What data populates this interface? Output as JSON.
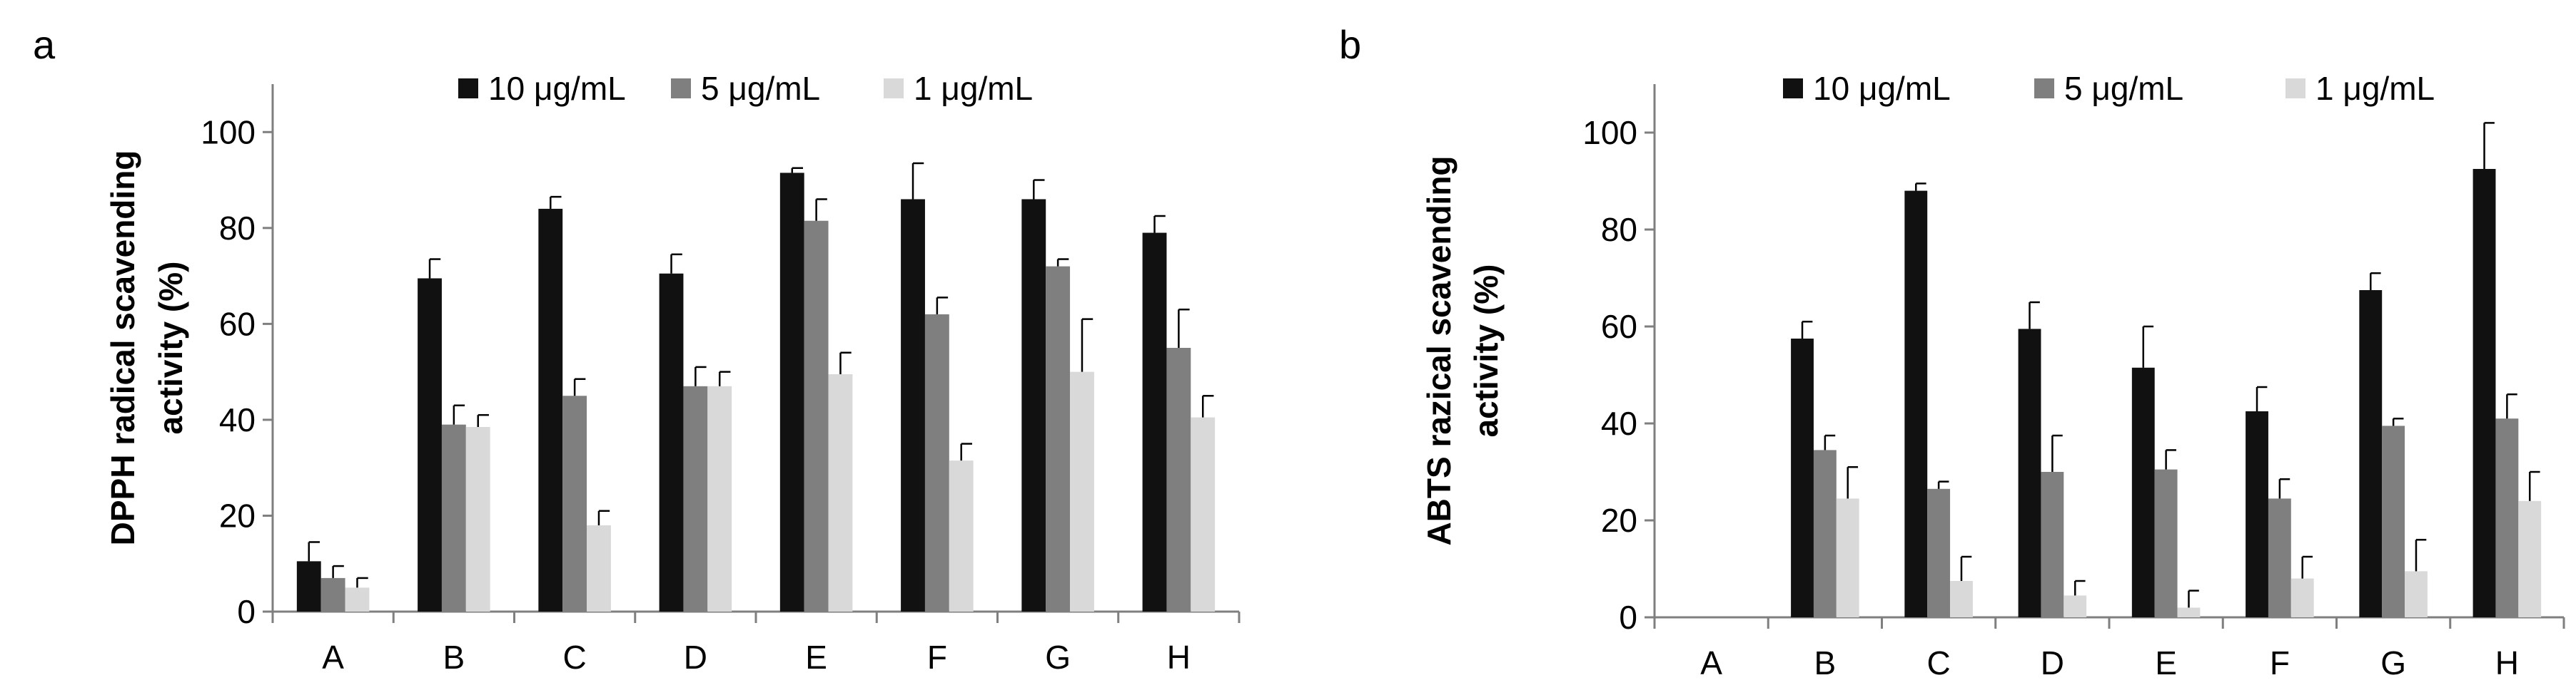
{
  "chart_data": [
    {
      "panel_label": "a",
      "type": "bar",
      "title": "",
      "xlabel": "",
      "ylabel_lines": [
        "DPPH radical scavending",
        "activity (%)"
      ],
      "ylim": [
        0,
        110
      ],
      "yticks": [
        0,
        20,
        40,
        60,
        80,
        100
      ],
      "categories": [
        "A",
        "B",
        "C",
        "D",
        "E",
        "F",
        "G",
        "H"
      ],
      "legend_position": "top",
      "series": [
        {
          "name": "10 μg/mL",
          "color": "#111111",
          "values": [
            10.5,
            69.5,
            84,
            70.5,
            91.5,
            86,
            86,
            79
          ],
          "errors": [
            4,
            4,
            2.5,
            4,
            1,
            7.5,
            4,
            3.5
          ]
        },
        {
          "name": "5 μg/mL",
          "color": "#7f7f7f",
          "values": [
            7,
            39,
            45,
            47,
            81.5,
            62,
            72,
            55
          ],
          "errors": [
            2.5,
            4,
            3.5,
            4,
            4.5,
            3.5,
            1.5,
            8
          ]
        },
        {
          "name": "1 μg/mL",
          "color": "#d9d9d9",
          "values": [
            5,
            38.5,
            18,
            47,
            49.5,
            31.5,
            50,
            40.5
          ],
          "errors": [
            2,
            2.5,
            3,
            3,
            4.5,
            3.5,
            11,
            4.5
          ]
        }
      ]
    },
    {
      "panel_label": "b",
      "type": "bar",
      "title": "",
      "xlabel": "",
      "ylabel_lines": [
        "ABTS razical scavending",
        "activity (%)"
      ],
      "ylim": [
        0,
        110
      ],
      "yticks": [
        0,
        20,
        40,
        60,
        80,
        100
      ],
      "categories": [
        "A",
        "B",
        "C",
        "D",
        "E",
        "F",
        "G",
        "H"
      ],
      "legend_position": "top",
      "series": [
        {
          "name": "10 μg/mL",
          "color": "#111111",
          "values": [
            0,
            57.5,
            88,
            59.5,
            51.5,
            42.5,
            67.5,
            92.5
          ],
          "errors": [
            0,
            3.5,
            1.5,
            5.5,
            8.5,
            5,
            3.5,
            9.5
          ]
        },
        {
          "name": "5 μg/mL",
          "color": "#7f7f7f",
          "values": [
            0,
            34.5,
            26.5,
            30,
            30.5,
            24.5,
            39.5,
            41
          ],
          "errors": [
            0,
            3,
            1.5,
            7.5,
            4,
            4,
            1.5,
            5
          ]
        },
        {
          "name": "1 μg/mL",
          "color": "#d9d9d9",
          "values": [
            0,
            24.5,
            7.5,
            4.5,
            2,
            8,
            9.5,
            24
          ],
          "errors": [
            0,
            6.5,
            5,
            3,
            3.5,
            4.5,
            6.5,
            6
          ]
        }
      ]
    }
  ]
}
